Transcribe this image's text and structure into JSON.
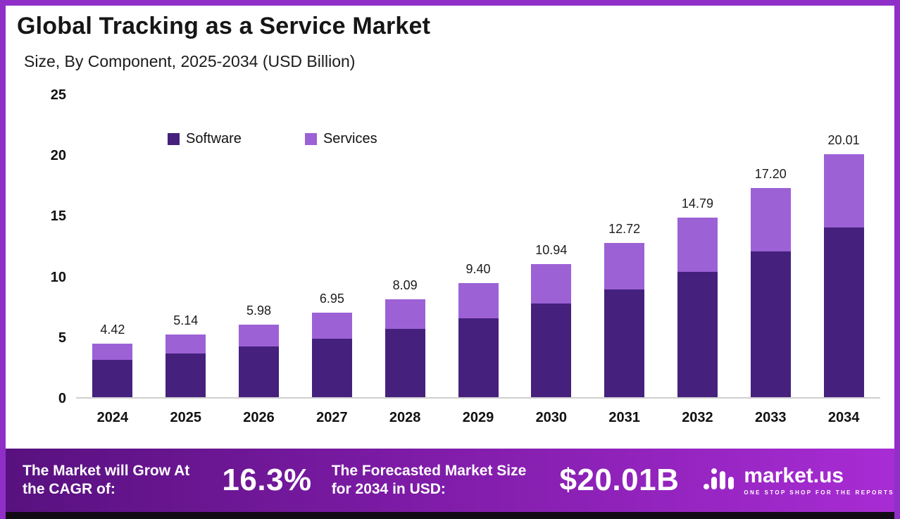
{
  "chart_data": {
    "type": "bar",
    "stacked": true,
    "title": "Global Tracking as a Service Market",
    "subtitle": "Size, By Component, 2025-2034 (USD Billion)",
    "categories": [
      "2024",
      "2025",
      "2026",
      "2027",
      "2028",
      "2029",
      "2030",
      "2031",
      "2032",
      "2033",
      "2034"
    ],
    "series": [
      {
        "name": "Software",
        "color": "#45217d",
        "values": [
          3.1,
          3.6,
          4.2,
          4.8,
          5.6,
          6.5,
          7.7,
          8.9,
          10.3,
          12.0,
          14.0
        ]
      },
      {
        "name": "Services",
        "color": "#9d61d6",
        "values": [
          1.32,
          1.54,
          1.78,
          2.15,
          2.49,
          2.9,
          3.24,
          3.82,
          4.49,
          5.2,
          6.01
        ]
      }
    ],
    "totals": [
      4.42,
      5.14,
      5.98,
      6.95,
      8.09,
      9.4,
      10.94,
      12.72,
      14.79,
      17.2,
      20.01
    ],
    "total_labels": [
      "4.42",
      "5.14",
      "5.98",
      "6.95",
      "8.09",
      "9.40",
      "10.94",
      "12.72",
      "14.79",
      "17.20",
      "20.01"
    ],
    "ylim": [
      0,
      25
    ],
    "yticks": [
      0,
      5,
      10,
      15,
      20,
      25
    ],
    "xlabel": "",
    "ylabel": "",
    "grid": false,
    "legend_position": "top-left-inside"
  },
  "footer": {
    "cagr_label": "The Market will Grow At the CAGR of:",
    "cagr_value": "16.3%",
    "forecast_label": "The Forecasted Market Size for 2034 in USD:",
    "forecast_value": "$20.01B",
    "brand_name": "market.us",
    "brand_tagline": "ONE STOP SHOP FOR THE REPORTS"
  },
  "colors": {
    "frame_border": "#8f2fc7",
    "software_bar": "#45217d",
    "services_bar": "#9d61d6",
    "footer_gradient_left": "#58117f",
    "footer_gradient_right": "#a82cd4",
    "bottom_strip": "#120b16"
  }
}
